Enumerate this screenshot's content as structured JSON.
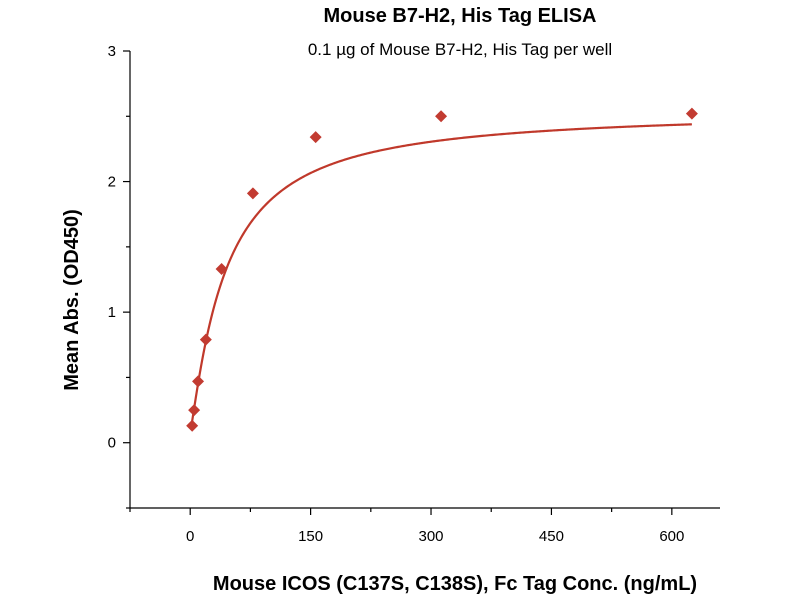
{
  "colors": {
    "series": "#C0392B",
    "marker": "#C23B31",
    "axis": "#000000"
  },
  "chart_data": {
    "type": "scatter",
    "title": "Mouse B7-H2, His Tag ELISA",
    "subtitle": "0.1 µg of Mouse B7-H2, His Tag per well",
    "xlabel": "Mouse ICOS (C137S, C138S), Fc Tag Conc. (ng/mL)",
    "ylabel": "Mean Abs. (OD450)",
    "xlim": [
      -75,
      660
    ],
    "ylim": [
      -0.5,
      3
    ],
    "xticks": [
      0,
      150,
      300,
      450,
      600
    ],
    "xtick_labels": [
      "0",
      "150",
      "300",
      "450",
      "600"
    ],
    "yticks": [
      0,
      1,
      2,
      3
    ],
    "ytick_labels": [
      "0",
      "1",
      "2",
      "3"
    ],
    "grid": false,
    "series": [
      {
        "x": [
          2.44,
          4.88,
          9.77,
          19.5,
          39.1,
          78.1,
          156.3,
          312.5,
          625
        ],
        "y": [
          0.13,
          0.25,
          0.47,
          0.79,
          1.33,
          1.91,
          2.34,
          2.5,
          2.52
        ],
        "fit": "four-parameter logistic"
      }
    ]
  }
}
